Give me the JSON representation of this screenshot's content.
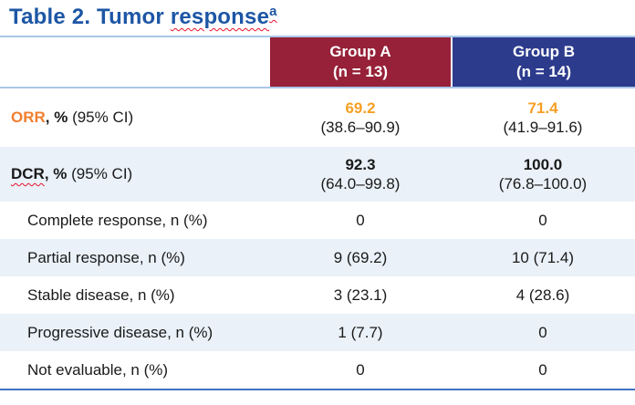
{
  "title": {
    "prefix": "Table 2. Tumor ",
    "misspelled_word": "response",
    "superscript": "a"
  },
  "colors": {
    "title_blue": "#1D56A5",
    "group_a_header_bg": "#962138",
    "group_b_header_bg": "#2D3B8D",
    "header_text": "#FFFFFF",
    "orr_label_orange": "#F07E2E",
    "orr_value_orange": "#F5A024",
    "row_stripe_blue": "#EAF1F8",
    "rule_light_blue": "#A9C7E8",
    "bottom_border_blue": "#4472C4",
    "spellcheck_red": "#E8112D",
    "body_text": "#1A1A1A"
  },
  "table": {
    "columns": [
      {
        "name_line1": "Group A",
        "name_line2": "(n = 13)"
      },
      {
        "name_line1": "Group B",
        "name_line2": "(n = 14)"
      }
    ],
    "rows": [
      {
        "id": "orr",
        "label_em": "ORR",
        "label_bold": ", %",
        "label_rest": " (95% CI)",
        "group_a": {
          "value": "69.2",
          "ci": "(38.6–90.9)"
        },
        "group_b": {
          "value": "71.4",
          "ci": "(41.9–91.6)"
        }
      },
      {
        "id": "dcr",
        "label_em": "DCR",
        "label_bold": ", %",
        "label_rest": " (95% CI)",
        "group_a": {
          "value": "92.3",
          "ci": "(64.0–99.8)"
        },
        "group_b": {
          "value": "100.0",
          "ci": "(76.8–100.0)"
        }
      },
      {
        "id": "complete-response",
        "label": "Complete response, n (%)",
        "group_a": {
          "value": "0"
        },
        "group_b": {
          "value": "0"
        }
      },
      {
        "id": "partial-response",
        "label": "Partial response, n (%)",
        "group_a": {
          "value": "9 (69.2)"
        },
        "group_b": {
          "value": "10 (71.4)"
        }
      },
      {
        "id": "stable-disease",
        "label": "Stable disease, n (%)",
        "group_a": {
          "value": "3 (23.1)"
        },
        "group_b": {
          "value": "4 (28.6)"
        }
      },
      {
        "id": "progressive-disease",
        "label": "Progressive disease, n (%)",
        "group_a": {
          "value": "1 (7.7)"
        },
        "group_b": {
          "value": "0"
        }
      },
      {
        "id": "not-evaluable",
        "label": "Not evaluable, n (%)",
        "group_a": {
          "value": "0"
        },
        "group_b": {
          "value": "0"
        }
      }
    ]
  }
}
